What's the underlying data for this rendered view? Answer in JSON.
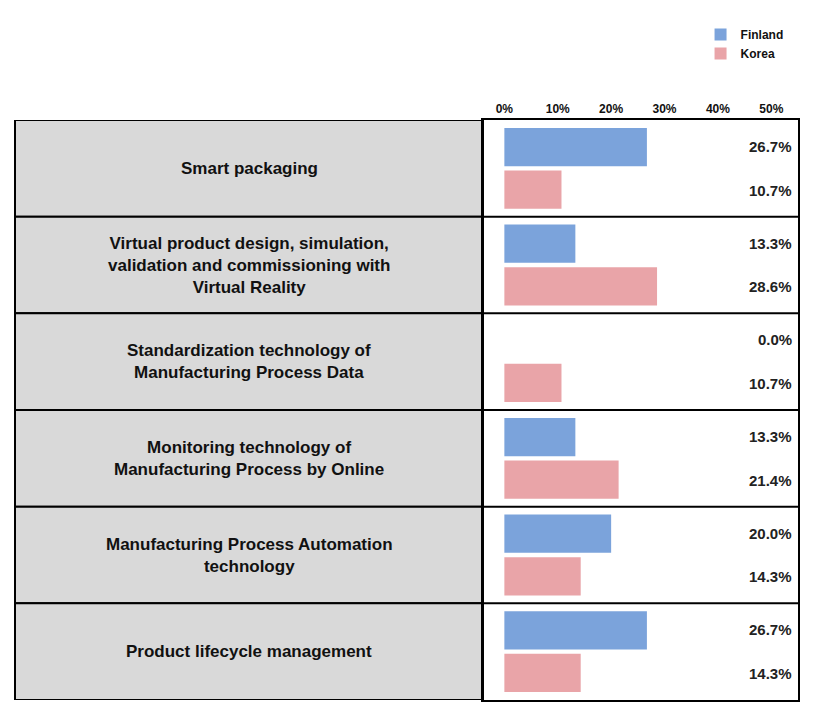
{
  "chart_data": {
    "type": "bar",
    "orientation": "horizontal",
    "categories": [
      "Smart packaging",
      "Virtual product design, simulation, validation and commissioning with Virtual Reality",
      "Standardization technology of Manufacturing Process Data",
      "Monitoring technology of Manufacturing Process by Online",
      "Manufacturing Process Automation technology",
      "Product lifecycle management"
    ],
    "series": [
      {
        "name": "Finland",
        "color": "#7ba3db",
        "values": [
          26.7,
          13.3,
          0.0,
          13.3,
          20.0,
          26.7
        ],
        "value_labels": [
          "26.7%",
          "13.3%",
          "0.0%",
          "13.3%",
          "20.0%",
          "26.7%"
        ]
      },
      {
        "name": "Korea",
        "color": "#e9a4a8",
        "values": [
          10.7,
          28.6,
          10.7,
          21.4,
          14.3,
          14.3
        ],
        "value_labels": [
          "10.7%",
          "28.6%",
          "10.7%",
          "21.4%",
          "14.3%",
          "14.3%"
        ]
      }
    ],
    "xlim": [
      -4,
      55
    ],
    "xticks": [
      {
        "value": 0,
        "label": "0%"
      },
      {
        "value": 10,
        "label": "10%"
      },
      {
        "value": 20,
        "label": "20%"
      },
      {
        "value": 30,
        "label": "30%"
      },
      {
        "value": 40,
        "label": "40%"
      },
      {
        "value": 50,
        "label": "50%"
      }
    ],
    "grid": false,
    "legend": "top right",
    "data_labels": true,
    "tick_labels": "x"
  }
}
